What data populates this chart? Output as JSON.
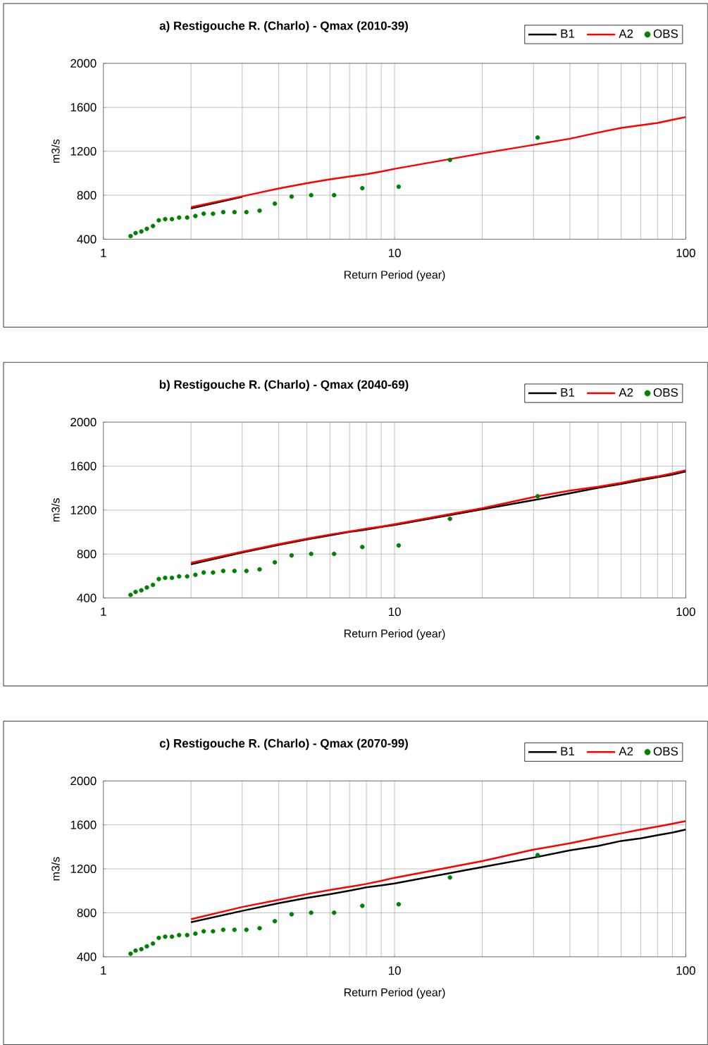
{
  "chart_data": [
    {
      "type": "line",
      "title": "a) Restigouche R. (Charlo) - Qmax (2010-39)",
      "xlabel": "Return Period (year)",
      "ylabel": "m3/s",
      "log": "x",
      "grid": true,
      "legend": "top right",
      "xlim": [
        1,
        100
      ],
      "xticks": [
        1,
        10,
        100
      ],
      "ylim": [
        400,
        2000
      ],
      "yticks": [
        400,
        800,
        1200,
        1600,
        2000
      ],
      "series": [
        {
          "name": "B1",
          "type": "line",
          "color": "#000000",
          "x": [
            2,
            3
          ],
          "values": [
            680,
            785
          ]
        },
        {
          "name": "A2",
          "color": "#ff0000",
          "x": [
            2,
            3,
            4,
            5,
            6,
            7,
            8,
            9,
            10,
            20,
            30,
            40,
            50,
            60,
            70,
            80,
            90,
            100
          ],
          "values": [
            692,
            790,
            861,
            910,
            945,
            970,
            991,
            1015,
            1040,
            1181,
            1258,
            1314,
            1370,
            1413,
            1437,
            1458,
            1486,
            1511
          ]
        },
        {
          "name": "OBS",
          "type": "scatter",
          "color": "#008000",
          "x": [
            1.24,
            1.29,
            1.35,
            1.41,
            1.48,
            1.55,
            1.63,
            1.72,
            1.82,
            1.94,
            2.07,
            2.21,
            2.38,
            2.58,
            2.82,
            3.1,
            3.44,
            3.88,
            4.43,
            5.17,
            6.2,
            7.75,
            10.33,
            15.5,
            31
          ],
          "values": [
            428,
            456,
            470,
            495,
            520,
            572,
            583,
            583,
            597,
            597,
            611,
            632,
            632,
            646,
            646,
            646,
            660,
            724,
            787,
            801,
            801,
            864,
            878,
            1121,
            1325
          ]
        }
      ]
    },
    {
      "type": "line",
      "title": "b) Restigouche R. (Charlo) - Qmax (2040-69)",
      "xlabel": "Return Period (year)",
      "ylabel": "m3/s",
      "log": "x",
      "grid": true,
      "legend": "top right",
      "xlim": [
        1,
        100
      ],
      "xticks": [
        1,
        10,
        100
      ],
      "ylim": [
        400,
        2000
      ],
      "yticks": [
        400,
        800,
        1200,
        1600,
        2000
      ],
      "series": [
        {
          "name": "B1",
          "color": "#000000",
          "x": [
            2,
            3,
            4,
            5,
            6,
            7,
            8,
            9,
            10,
            20,
            30,
            40,
            50,
            60,
            70,
            80,
            90,
            100
          ],
          "values": [
            706,
            814,
            883,
            932,
            970,
            1001,
            1023,
            1047,
            1064,
            1207,
            1290,
            1353,
            1402,
            1437,
            1471,
            1499,
            1523,
            1551
          ]
        },
        {
          "name": "A2",
          "color": "#ff0000",
          "x": [
            2,
            3,
            4,
            5,
            6,
            7,
            8,
            9,
            10,
            20,
            30,
            40,
            50,
            60,
            70,
            80,
            90,
            100
          ],
          "values": [
            720,
            821,
            890,
            939,
            977,
            1005,
            1030,
            1050,
            1071,
            1217,
            1318,
            1377,
            1412,
            1447,
            1482,
            1506,
            1534,
            1562
          ]
        },
        {
          "name": "OBS",
          "type": "scatter",
          "color": "#008000",
          "x": [
            1.24,
            1.29,
            1.35,
            1.41,
            1.48,
            1.55,
            1.63,
            1.72,
            1.82,
            1.94,
            2.07,
            2.21,
            2.38,
            2.58,
            2.82,
            3.1,
            3.44,
            3.88,
            4.43,
            5.17,
            6.2,
            7.75,
            10.33,
            15.5,
            31
          ],
          "values": [
            428,
            456,
            470,
            495,
            520,
            572,
            583,
            583,
            597,
            597,
            611,
            632,
            632,
            646,
            646,
            646,
            660,
            724,
            787,
            801,
            801,
            864,
            878,
            1121,
            1325
          ]
        }
      ]
    },
    {
      "type": "line",
      "title": "c) Restigouche R. (Charlo) - Qmax (2070-99)",
      "xlabel": "Return Period (year)",
      "ylabel": "m3/s",
      "log": "x",
      "grid": true,
      "legend": "top right",
      "xlim": [
        1,
        100
      ],
      "xticks": [
        1,
        10,
        100
      ],
      "ylim": [
        400,
        2000
      ],
      "yticks": [
        400,
        800,
        1200,
        1600,
        2000
      ],
      "series": [
        {
          "name": "B1",
          "color": "#000000",
          "x": [
            2,
            3,
            4,
            5,
            6,
            7,
            8,
            9,
            10,
            20,
            30,
            40,
            50,
            60,
            70,
            80,
            90,
            100
          ],
          "values": [
            714,
            818,
            887,
            936,
            970,
            1001,
            1032,
            1049,
            1067,
            1216,
            1302,
            1368,
            1409,
            1454,
            1478,
            1506,
            1530,
            1558
          ]
        },
        {
          "name": "A2",
          "color": "#ff0000",
          "x": [
            2,
            3,
            4,
            5,
            6,
            7,
            8,
            9,
            10,
            20,
            30,
            40,
            50,
            60,
            70,
            80,
            90,
            100
          ],
          "values": [
            742,
            853,
            918,
            970,
            1008,
            1036,
            1063,
            1091,
            1119,
            1271,
            1375,
            1433,
            1485,
            1523,
            1558,
            1585,
            1610,
            1634
          ]
        },
        {
          "name": "OBS",
          "type": "scatter",
          "color": "#008000",
          "x": [
            1.24,
            1.29,
            1.35,
            1.41,
            1.48,
            1.55,
            1.63,
            1.72,
            1.82,
            1.94,
            2.07,
            2.21,
            2.38,
            2.58,
            2.82,
            3.1,
            3.44,
            3.88,
            4.43,
            5.17,
            6.2,
            7.75,
            10.33,
            15.5,
            31
          ],
          "values": [
            428,
            456,
            470,
            495,
            520,
            572,
            583,
            583,
            597,
            597,
            611,
            632,
            632,
            646,
            646,
            646,
            660,
            724,
            787,
            801,
            801,
            864,
            878,
            1121,
            1325
          ]
        }
      ]
    }
  ]
}
